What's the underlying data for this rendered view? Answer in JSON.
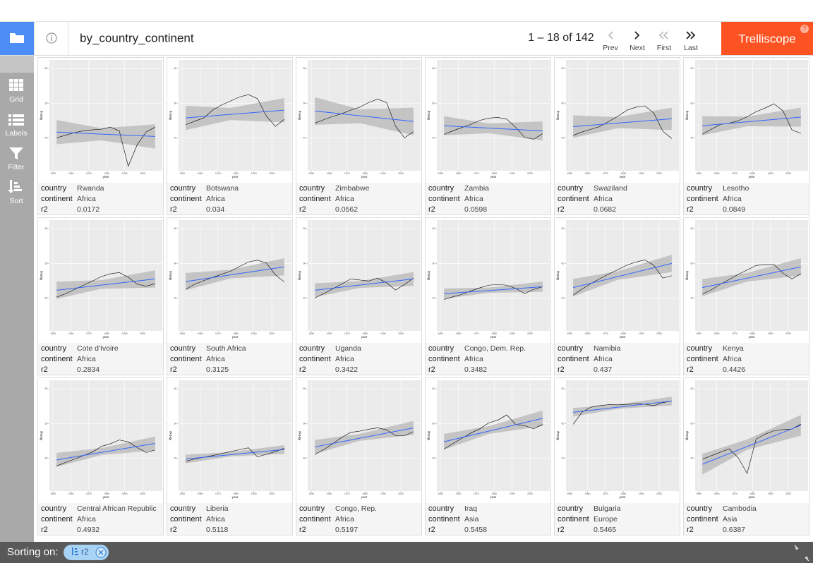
{
  "header": {
    "title": "by_country_continent",
    "pager": "1 – 18 of 142",
    "nav": [
      "Prev",
      "Next",
      "First",
      "Last"
    ],
    "brand": "Trelliscope"
  },
  "sidebar": [
    "Grid",
    "Labels",
    "Filter",
    "Sort"
  ],
  "footer": {
    "label": "Sorting on:",
    "sort": "r2"
  },
  "panel_fields": [
    "country",
    "continent",
    "r2"
  ],
  "plot": {
    "x_label": "year",
    "y_label": "lifeExp",
    "xlim": [
      1948,
      2011
    ],
    "ylim": [
      21,
      85
    ],
    "xticks": [
      1950,
      1960,
      1970,
      1980,
      1990,
      2000
    ],
    "yticks": [
      40,
      60,
      80
    ],
    "x": [
      1952,
      1957,
      1962,
      1967,
      1972,
      1977,
      1982,
      1987,
      1992,
      1997,
      2002,
      2007
    ],
    "fit_x": [
      1952,
      2007
    ],
    "band_x": [
      1952,
      1977,
      2007
    ],
    "line_color": "#000000",
    "fit_color": "#3366ff",
    "band_color": "#bdbdbd",
    "panel_bg": "#ebebeb"
  },
  "panels": [
    {
      "country": "Rwanda",
      "continent": "Africa",
      "r2": 0.0172,
      "lifeExp": [
        40.0,
        41.5,
        43.0,
        44.1,
        44.6,
        45.0,
        46.2,
        44.0,
        23.6,
        36.1,
        43.4,
        46.2
      ],
      "fit": [
        43.3,
        40.8
      ],
      "band_lower": [
        36.3,
        38.6,
        33.8
      ],
      "band_upper": [
        50.3,
        45.6,
        47.8
      ]
    },
    {
      "country": "Botswana",
      "continent": "Africa",
      "r2": 0.034,
      "lifeExp": [
        47.6,
        49.6,
        51.5,
        56.0,
        59.0,
        61.3,
        63.6,
        65.0,
        62.7,
        52.6,
        46.6,
        50.7
      ],
      "fit": [
        51.5,
        56
      ],
      "band_lower": [
        44.5,
        50.3,
        49
      ],
      "band_upper": [
        58.5,
        57.3,
        63
      ]
    },
    {
      "country": "Zimbabwe",
      "continent": "Africa",
      "r2": 0.0562,
      "lifeExp": [
        48.5,
        50.5,
        52.4,
        54.0,
        56.0,
        57.7,
        60.4,
        62.4,
        60.4,
        46.8,
        40.0,
        43.5
      ],
      "fit": [
        55.5,
        49.5
      ],
      "band_lower": [
        47.5,
        48.5,
        41.5
      ],
      "band_upper": [
        63.5,
        56.5,
        57.5
      ]
    },
    {
      "country": "Zambia",
      "continent": "Africa",
      "r2": 0.0598,
      "lifeExp": [
        42.0,
        44.1,
        46.0,
        47.8,
        50.1,
        51.4,
        51.8,
        50.8,
        46.1,
        40.2,
        39.2,
        42.4
      ],
      "fit": [
        47,
        44
      ],
      "band_lower": [
        41.5,
        42.7,
        38.5
      ],
      "band_upper": [
        52.5,
        48.3,
        49.5
      ]
    },
    {
      "country": "Swaziland",
      "continent": "Africa",
      "r2": 0.0682,
      "lifeExp": [
        41.4,
        43.4,
        45.0,
        46.6,
        49.6,
        52.5,
        56.0,
        57.7,
        58.5,
        54.3,
        43.9,
        39.6
      ],
      "fit": [
        46.5,
        51
      ],
      "band_lower": [
        40,
        45.6,
        44.5
      ],
      "band_upper": [
        53,
        52,
        57.5
      ]
    },
    {
      "country": "Lesotho",
      "continent": "Africa",
      "r2": 0.0849,
      "lifeExp": [
        42.1,
        45.0,
        47.7,
        48.5,
        49.8,
        52.2,
        55.1,
        57.2,
        59.7,
        55.6,
        44.6,
        42.6
      ],
      "fit": [
        47,
        52
      ],
      "band_lower": [
        41.5,
        46.7,
        46.5
      ],
      "band_upper": [
        52.5,
        52.3,
        57.5
      ]
    },
    {
      "country": "Cote d'Ivoire",
      "continent": "Africa",
      "r2": 0.2834,
      "lifeExp": [
        40.5,
        42.5,
        44.9,
        47.4,
        49.8,
        52.4,
        54.0,
        54.7,
        52.0,
        48.0,
        46.8,
        48.3
      ],
      "fit": [
        44.5,
        51
      ],
      "band_lower": [
        39.5,
        45.3,
        46
      ],
      "band_upper": [
        49.5,
        50.3,
        56
      ]
    },
    {
      "country": "South Africa",
      "continent": "Africa",
      "r2": 0.3125,
      "lifeExp": [
        45.0,
        48.0,
        50.0,
        51.9,
        53.7,
        55.5,
        58.2,
        60.8,
        61.9,
        60.2,
        53.4,
        49.3
      ],
      "fit": [
        49.5,
        58
      ],
      "band_lower": [
        44.5,
        51.3,
        53
      ],
      "band_upper": [
        54.5,
        56.3,
        63
      ]
    },
    {
      "country": "Uganda",
      "continent": "Africa",
      "r2": 0.3422,
      "lifeExp": [
        40.0,
        42.6,
        45.3,
        48.1,
        51.0,
        50.4,
        49.8,
        51.5,
        48.8,
        44.6,
        47.8,
        51.5
      ],
      "fit": [
        44.5,
        51
      ],
      "band_lower": [
        40.5,
        45.8,
        47
      ],
      "band_upper": [
        48.5,
        49.8,
        55
      ]
    },
    {
      "country": "Congo, Dem. Rep.",
      "continent": "Africa",
      "r2": 0.3482,
      "lifeExp": [
        39.1,
        40.7,
        42.1,
        44.1,
        45.9,
        47.4,
        47.8,
        47.4,
        45.5,
        42.6,
        45.0,
        46.5
      ],
      "fit": [
        42.5,
        46.5
      ],
      "band_lower": [
        39.5,
        43,
        43.5
      ],
      "band_upper": [
        45.5,
        46,
        49.5
      ]
    },
    {
      "country": "Namibia",
      "continent": "Africa",
      "r2": 0.437,
      "lifeExp": [
        41.7,
        45.2,
        48.4,
        51.2,
        53.9,
        56.4,
        59.0,
        60.8,
        62.0,
        58.9,
        51.5,
        52.9
      ],
      "fit": [
        46,
        60
      ],
      "band_lower": [
        41,
        50.5,
        55
      ],
      "band_upper": [
        51,
        55.5,
        65
      ]
    },
    {
      "country": "Kenya",
      "continent": "Africa",
      "r2": 0.4426,
      "lifeExp": [
        42.3,
        44.7,
        47.9,
        50.7,
        53.6,
        56.2,
        58.8,
        59.3,
        59.3,
        54.4,
        51.0,
        54.1
      ],
      "fit": [
        46,
        58
      ],
      "band_lower": [
        41,
        49.5,
        53
      ],
      "band_upper": [
        51,
        54.5,
        63
      ]
    },
    {
      "country": "Central African Republic",
      "continent": "Africa",
      "r2": 0.4932,
      "lifeExp": [
        35.5,
        37.5,
        39.5,
        41.5,
        43.5,
        46.8,
        48.3,
        50.5,
        49.4,
        46.1,
        43.3,
        44.7
      ],
      "fit": [
        39,
        48.5
      ],
      "band_lower": [
        35,
        41.8,
        44.5
      ],
      "band_upper": [
        43,
        45.8,
        52.5
      ]
    },
    {
      "country": "Liberia",
      "continent": "Africa",
      "r2": 0.5118,
      "lifeExp": [
        38.2,
        39.5,
        40.5,
        41.5,
        42.6,
        43.8,
        44.9,
        46.0,
        40.8,
        42.2,
        43.8,
        45.7
      ],
      "fit": [
        39.5,
        45
      ],
      "band_lower": [
        37,
        41,
        42.5
      ],
      "band_upper": [
        42,
        43.5,
        47.5
      ]
    },
    {
      "country": "Congo, Rep.",
      "continent": "Africa",
      "r2": 0.5197,
      "lifeExp": [
        42.1,
        45.0,
        48.4,
        52.0,
        54.9,
        55.6,
        56.7,
        57.5,
        56.4,
        53.0,
        53.0,
        55.3
      ],
      "fit": [
        46.5,
        57.5
      ],
      "band_lower": [
        42.5,
        50,
        53.5
      ],
      "band_upper": [
        50.5,
        54,
        61.5
      ]
    },
    {
      "country": "Iraq",
      "continent": "Asia",
      "r2": 0.5458,
      "lifeExp": [
        45.3,
        48.4,
        51.5,
        54.5,
        57.0,
        60.4,
        62.0,
        65.0,
        59.5,
        58.8,
        57.0,
        59.5
      ],
      "fit": [
        49.5,
        63
      ],
      "band_lower": [
        45,
        54,
        58.5
      ],
      "band_upper": [
        54,
        58.5,
        67.5
      ]
    },
    {
      "country": "Bulgaria",
      "continent": "Europe",
      "r2": 0.5465,
      "lifeExp": [
        59.6,
        66.6,
        69.5,
        70.4,
        70.9,
        70.8,
        71.1,
        71.3,
        71.2,
        70.3,
        72.1,
        73.0
      ],
      "fit": [
        66.5,
        73
      ],
      "band_lower": [
        64,
        68.5,
        70.5
      ],
      "band_upper": [
        69,
        71,
        75.5
      ]
    },
    {
      "country": "Cambodia",
      "continent": "Asia",
      "r2": 0.6387,
      "lifeExp": [
        39.4,
        41.4,
        43.4,
        45.4,
        40.3,
        31.2,
        51.0,
        53.9,
        55.8,
        56.5,
        56.8,
        59.7
      ],
      "fit": [
        36.5,
        59
      ],
      "band_lower": [
        30.5,
        44.8,
        53
      ],
      "band_upper": [
        42.5,
        50.8,
        65
      ]
    }
  ]
}
